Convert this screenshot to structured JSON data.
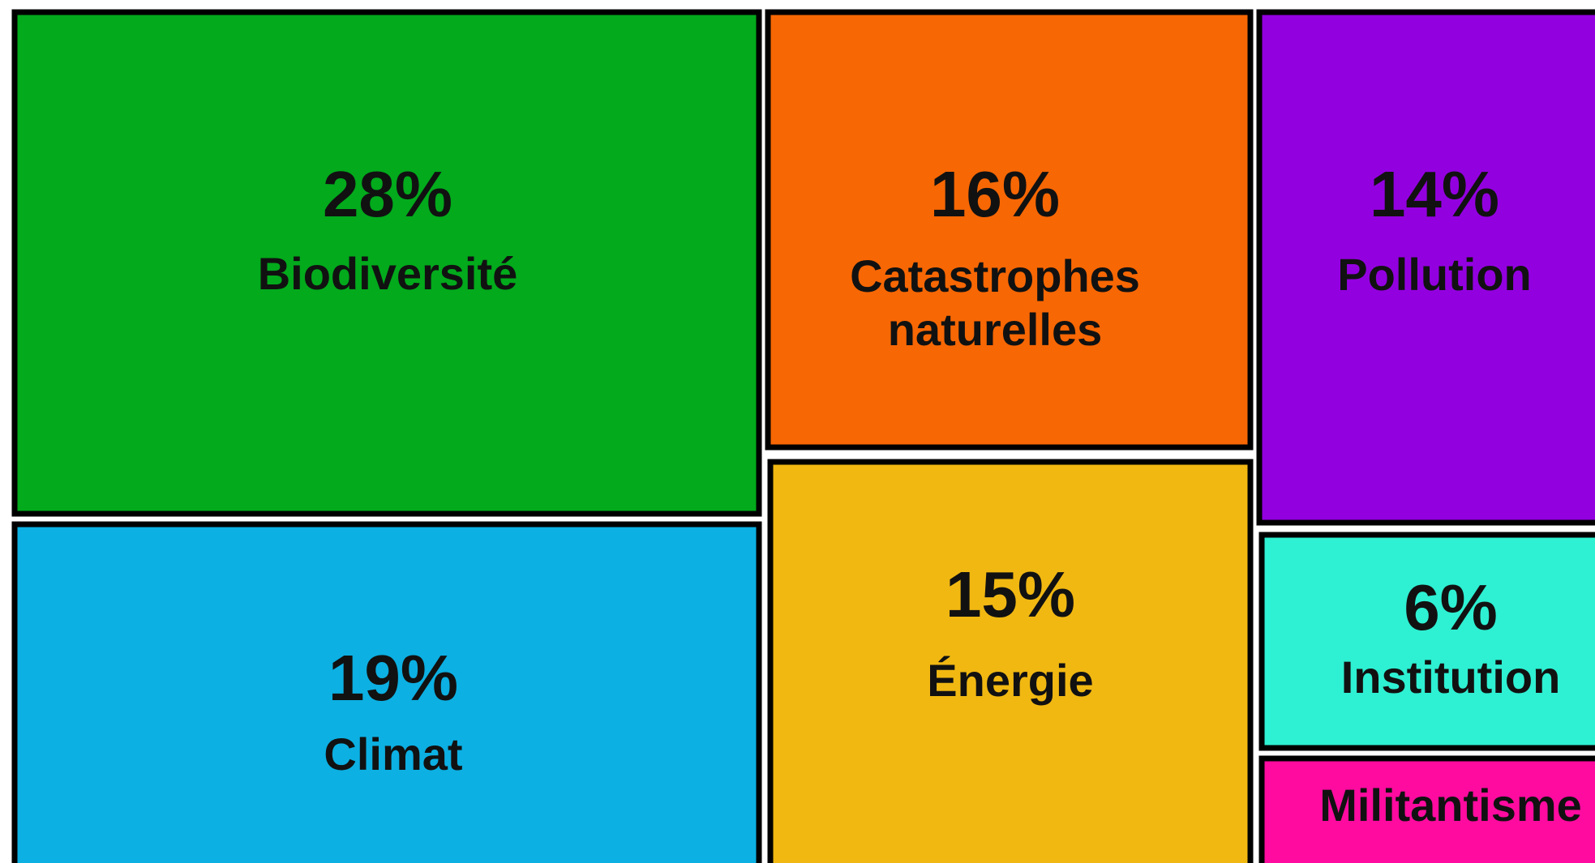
{
  "chart_data": {
    "type": "treemap",
    "categories": [
      "Biodiversité",
      "Climat",
      "Catastrophes naturelles",
      "Énergie",
      "Pollution",
      "Institution",
      "Militantisme"
    ],
    "values": [
      28,
      19,
      16,
      15,
      14,
      6,
      2
    ],
    "value_labels": [
      "28%",
      "19%",
      "16%",
      "15%",
      "14%",
      "6%",
      null
    ],
    "colors": [
      "#02aa1c",
      "#0cb0e3",
      "#f76704",
      "#f1b812",
      "#9300e0",
      "#2ef0d2",
      "#ff0ba0"
    ]
  }
}
